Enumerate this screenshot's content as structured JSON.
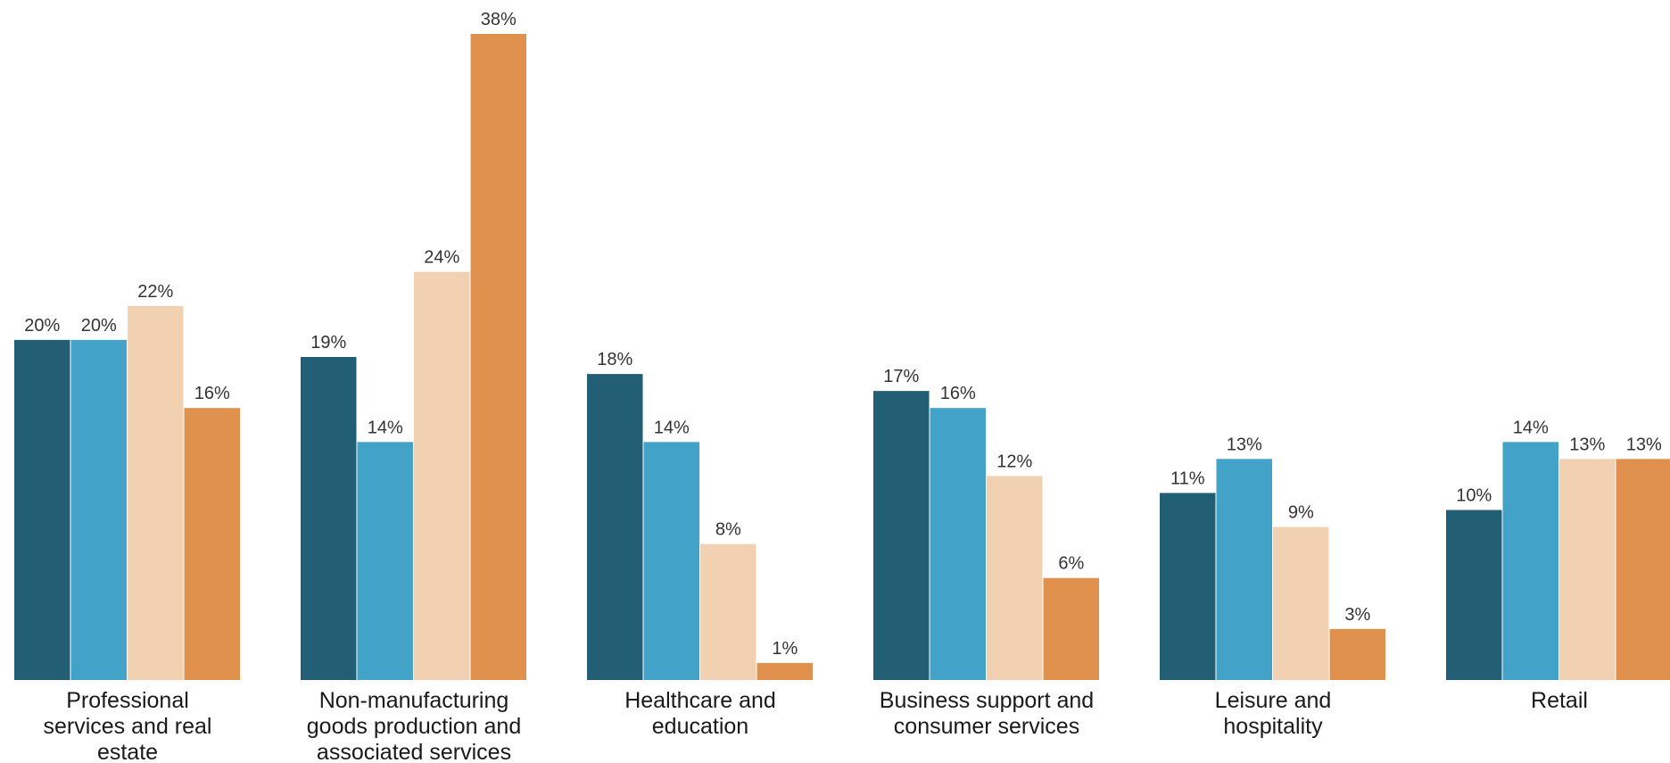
{
  "chart_data": {
    "type": "bar",
    "categories": [
      [
        "Professional",
        "services and real",
        "estate"
      ],
      [
        "Non-manufacturing",
        "goods production and",
        "associated services"
      ],
      [
        "Healthcare and",
        "education"
      ],
      [
        "Business support and",
        "consumer services"
      ],
      [
        "Leisure and",
        "hospitality"
      ],
      [
        "Retail"
      ]
    ],
    "series": [
      {
        "values": [
          20,
          19,
          18,
          17,
          11,
          10
        ],
        "color": "#235f74"
      },
      {
        "values": [
          20,
          14,
          14,
          16,
          13,
          14
        ],
        "color": "#42a2c7"
      },
      {
        "values": [
          22,
          24,
          8,
          12,
          9,
          13
        ],
        "color": "#f2d0b2"
      },
      {
        "values": [
          16,
          38,
          1,
          6,
          3,
          13
        ],
        "color": "#df914d"
      }
    ],
    "value_suffix": "%",
    "ylim": [
      0,
      38
    ],
    "grid": false,
    "legend": "none",
    "title": "",
    "xlabel": "",
    "ylabel": ""
  }
}
